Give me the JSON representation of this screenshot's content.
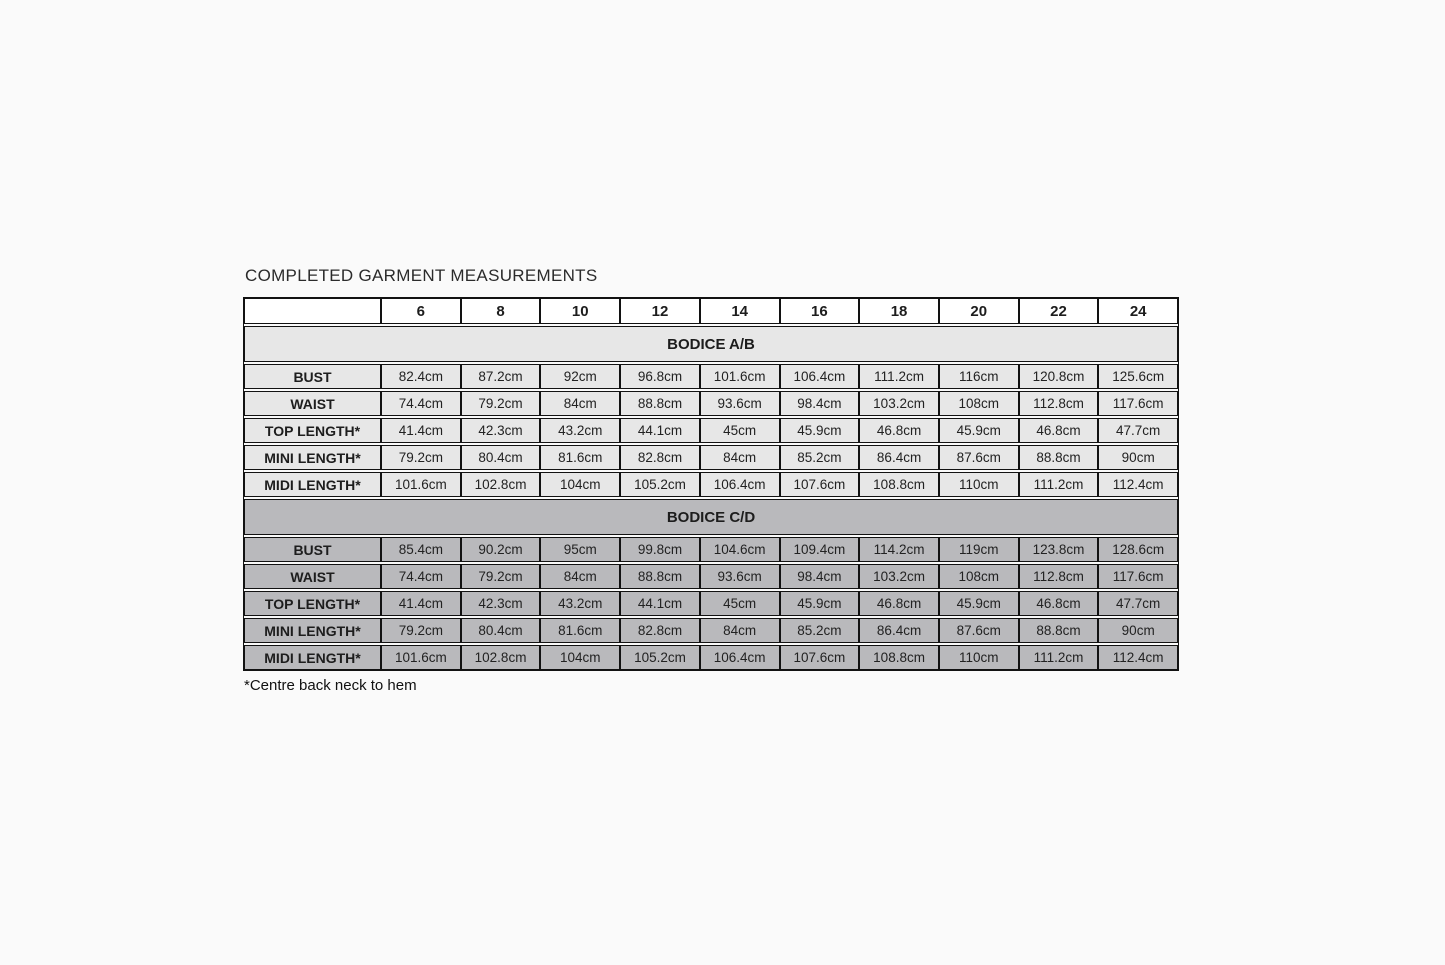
{
  "page": {
    "title": "COMPLETED GARMENT MEASUREMENTS",
    "footnote": "*Centre back neck to hem"
  },
  "colors": {
    "section_light": "#e7e7e7",
    "section_dark": "#b9b9bc",
    "header_bg": "#ffffff",
    "border": "#121212",
    "page_bg": "#fafafa"
  },
  "table": {
    "sizes": [
      "6",
      "8",
      "10",
      "12",
      "14",
      "16",
      "18",
      "20",
      "22",
      "24"
    ],
    "sections": [
      {
        "name": "BODICE A/B",
        "theme": "light",
        "rows": [
          {
            "label": "BUST",
            "values": [
              "82.4cm",
              "87.2cm",
              "92cm",
              "96.8cm",
              "101.6cm",
              "106.4cm",
              "111.2cm",
              "116cm",
              "120.8cm",
              "125.6cm"
            ]
          },
          {
            "label": "WAIST",
            "values": [
              "74.4cm",
              "79.2cm",
              "84cm",
              "88.8cm",
              "93.6cm",
              "98.4cm",
              "103.2cm",
              "108cm",
              "112.8cm",
              "117.6cm"
            ]
          },
          {
            "label": "TOP LENGTH*",
            "values": [
              "41.4cm",
              "42.3cm",
              "43.2cm",
              "44.1cm",
              "45cm",
              "45.9cm",
              "46.8cm",
              "45.9cm",
              "46.8cm",
              "47.7cm"
            ]
          },
          {
            "label": "MINI LENGTH*",
            "values": [
              "79.2cm",
              "80.4cm",
              "81.6cm",
              "82.8cm",
              "84cm",
              "85.2cm",
              "86.4cm",
              "87.6cm",
              "88.8cm",
              "90cm"
            ]
          },
          {
            "label": "MIDI LENGTH*",
            "values": [
              "101.6cm",
              "102.8cm",
              "104cm",
              "105.2cm",
              "106.4cm",
              "107.6cm",
              "108.8cm",
              "110cm",
              "111.2cm",
              "112.4cm"
            ]
          }
        ]
      },
      {
        "name": "BODICE C/D",
        "theme": "dark",
        "rows": [
          {
            "label": "BUST",
            "values": [
              "85.4cm",
              "90.2cm",
              "95cm",
              "99.8cm",
              "104.6cm",
              "109.4cm",
              "114.2cm",
              "119cm",
              "123.8cm",
              "128.6cm"
            ]
          },
          {
            "label": "WAIST",
            "values": [
              "74.4cm",
              "79.2cm",
              "84cm",
              "88.8cm",
              "93.6cm",
              "98.4cm",
              "103.2cm",
              "108cm",
              "112.8cm",
              "117.6cm"
            ]
          },
          {
            "label": "TOP LENGTH*",
            "values": [
              "41.4cm",
              "42.3cm",
              "43.2cm",
              "44.1cm",
              "45cm",
              "45.9cm",
              "46.8cm",
              "45.9cm",
              "46.8cm",
              "47.7cm"
            ]
          },
          {
            "label": "MINI LENGTH*",
            "values": [
              "79.2cm",
              "80.4cm",
              "81.6cm",
              "82.8cm",
              "84cm",
              "85.2cm",
              "86.4cm",
              "87.6cm",
              "88.8cm",
              "90cm"
            ]
          },
          {
            "label": "MIDI LENGTH*",
            "values": [
              "101.6cm",
              "102.8cm",
              "104cm",
              "105.2cm",
              "106.4cm",
              "107.6cm",
              "108.8cm",
              "110cm",
              "111.2cm",
              "112.4cm"
            ]
          }
        ]
      }
    ]
  }
}
